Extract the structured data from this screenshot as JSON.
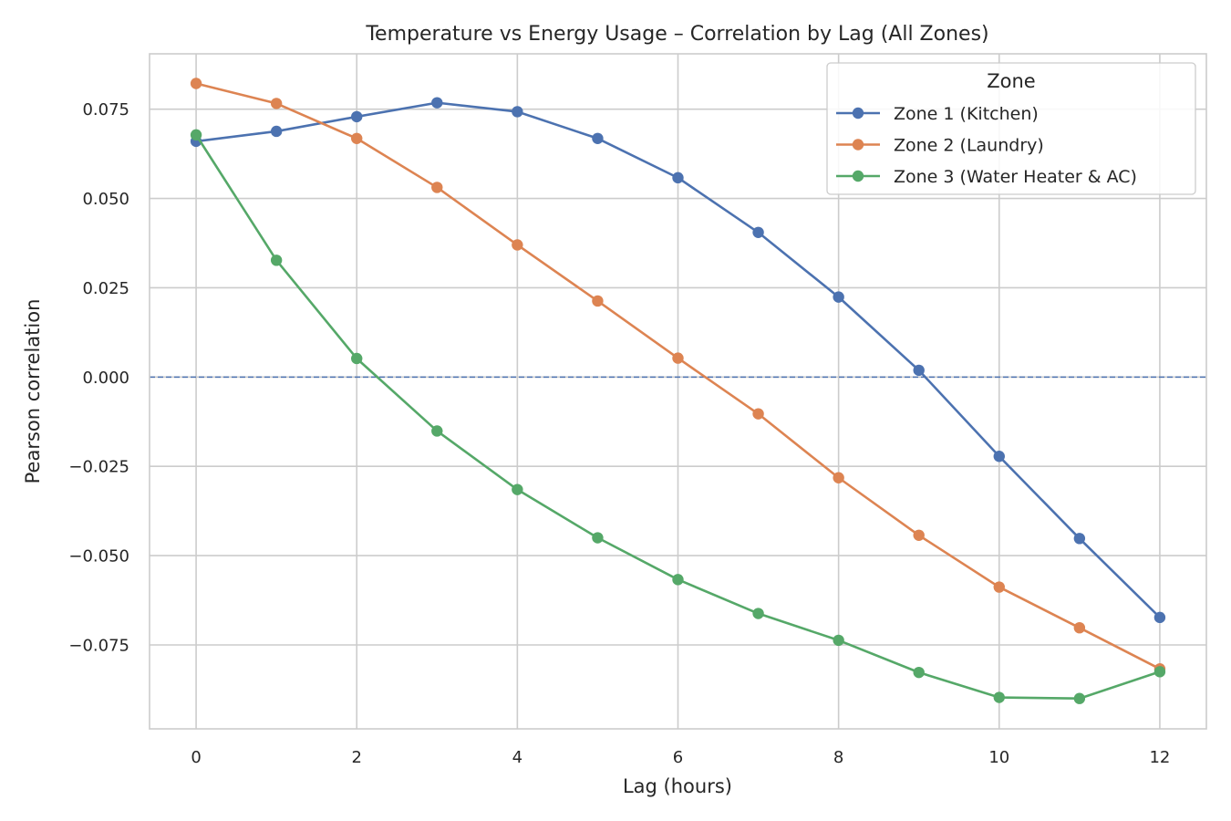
{
  "chart_data": {
    "type": "line",
    "title": "Temperature vs Energy Usage – Correlation by Lag (All Zones)",
    "xlabel": "Lag (hours)",
    "ylabel": "Pearson correlation",
    "x": [
      0,
      1,
      2,
      3,
      4,
      5,
      6,
      7,
      8,
      9,
      10,
      11,
      12
    ],
    "xlim": [
      -0.58,
      12.58
    ],
    "ylim": [
      -0.0985,
      0.0905
    ],
    "xticks": [
      0,
      2,
      4,
      6,
      8,
      10,
      12
    ],
    "xtick_labels": [
      "0",
      "2",
      "4",
      "6",
      "8",
      "10",
      "12"
    ],
    "yticks": [
      -0.075,
      -0.05,
      -0.025,
      0.0,
      0.025,
      0.05,
      0.075
    ],
    "ytick_labels": [
      "−0.075",
      "−0.050",
      "−0.025",
      "0.000",
      "0.025",
      "0.050",
      "0.075"
    ],
    "reference_line": {
      "y": 0.0,
      "style": "dashed",
      "color": "#4c72b0"
    },
    "grid": true,
    "legend": {
      "title": "Zone",
      "position": "top-right"
    },
    "series": [
      {
        "name": "Zone 1 (Kitchen)",
        "color": "#4c72b0",
        "values": [
          0.066,
          0.0688,
          0.0729,
          0.0768,
          0.0743,
          0.0668,
          0.0558,
          0.0405,
          0.0224,
          0.0019,
          -0.0222,
          -0.0452,
          -0.0673
        ]
      },
      {
        "name": "Zone 2 (Laundry)",
        "color": "#dd8452",
        "values": [
          0.0822,
          0.0766,
          0.0668,
          0.0531,
          0.037,
          0.0213,
          0.0053,
          -0.0103,
          -0.0282,
          -0.0443,
          -0.0588,
          -0.0702,
          -0.0817
        ]
      },
      {
        "name": "Zone 3 (Water Heater & AC)",
        "color": "#55a868",
        "values": [
          0.0678,
          0.0327,
          0.0052,
          -0.0151,
          -0.0315,
          -0.045,
          -0.0567,
          -0.0662,
          -0.0737,
          -0.0827,
          -0.0897,
          -0.09,
          -0.0825
        ]
      }
    ]
  }
}
